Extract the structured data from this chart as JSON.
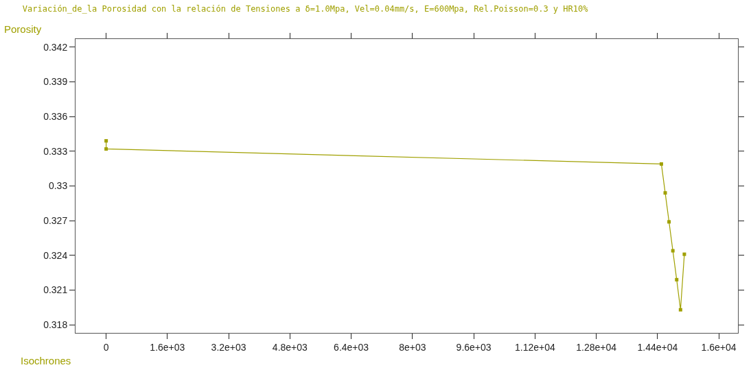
{
  "chart_data": {
    "type": "line",
    "title": "Variación_de_la Porosidad con la relación de Tensiones a δ=1.0Mpa, Vel=0.04mm/s, E=600Mpa, Rel.Poisson=0.3 y HR10%",
    "xlabel": "Isochrones",
    "ylabel": "Porosity",
    "x": [
      0,
      0,
      14500,
      14600,
      14700,
      14800,
      14900,
      15000,
      15100
    ],
    "series": [
      {
        "color": "#a0a000",
        "values": [
          0.3339,
          0.3332,
          0.3319,
          0.3294,
          0.3269,
          0.3244,
          0.3219,
          0.3193,
          0.3241
        ]
      }
    ],
    "xlim": [
      -800,
      16500
    ],
    "ylim": [
      0.3173,
      0.3427
    ],
    "xticks": [
      0,
      {
        "value": 1600,
        "label": "1.6e+03"
      },
      {
        "value": 3200,
        "label": "3.2e+03"
      },
      {
        "value": 4800,
        "label": "4.8e+03"
      },
      {
        "value": 6400,
        "label": "6.4e+03"
      },
      {
        "value": 8000,
        "label": "8e+03"
      },
      {
        "value": 9600,
        "label": "9.6e+03"
      },
      {
        "value": 11200,
        "label": "1.12e+04"
      },
      {
        "value": 12800,
        "label": "1.28e+04"
      },
      {
        "value": 14400,
        "label": "1.44e+04"
      },
      {
        "value": 16000,
        "label": "1.6e+04"
      }
    ],
    "yticks": [
      0.318,
      0.321,
      0.324,
      0.327,
      0.33,
      0.333,
      0.336,
      0.339,
      0.342
    ],
    "grid": false,
    "marker": "square",
    "line_style": "solid"
  }
}
